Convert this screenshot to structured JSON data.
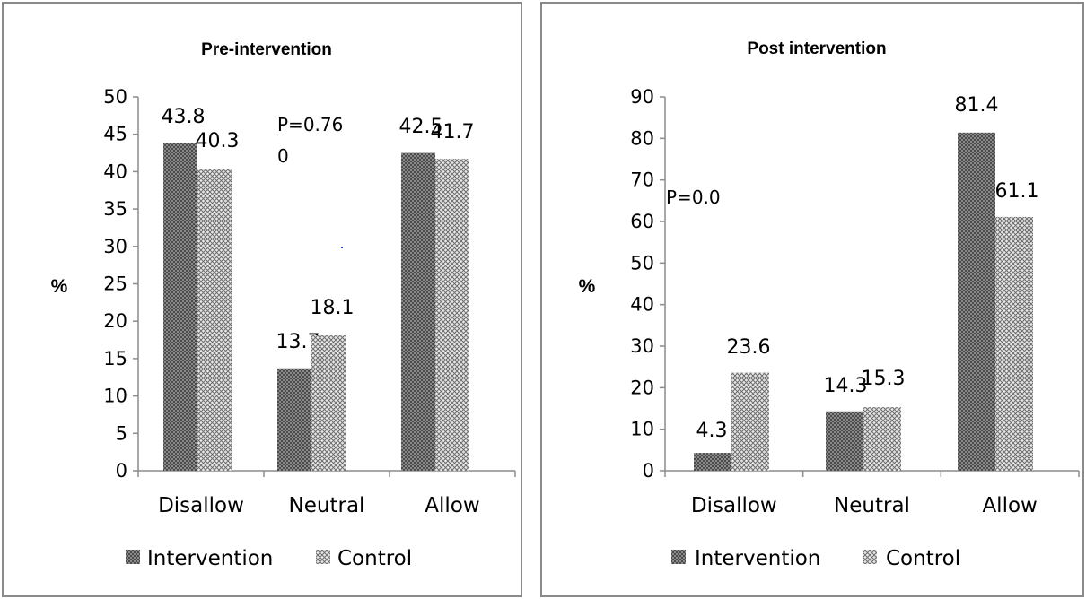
{
  "chart_data": [
    {
      "type": "bar",
      "title": "Pre-intervention",
      "ylabel": "%",
      "ylim": [
        0,
        50
      ],
      "yticks": [
        0,
        5,
        10,
        15,
        20,
        25,
        30,
        35,
        40,
        45,
        50
      ],
      "categories": [
        "Disallow",
        "Neutral",
        "Allow"
      ],
      "series": [
        {
          "name": "Intervention",
          "values": [
            43.8,
            13.7,
            42.5
          ],
          "labels": [
            "43.8",
            "13.7",
            "42.5"
          ],
          "pattern": "dark-cross"
        },
        {
          "name": "Control",
          "values": [
            40.3,
            18.1,
            41.7
          ],
          "labels": [
            "40.3",
            "18.1",
            "41.7"
          ],
          "pattern": "light-cross"
        }
      ],
      "annotation": [
        "P=0.76",
        "0"
      ],
      "legend_position": "bottom",
      "grid": false
    },
    {
      "type": "bar",
      "title": "Post intervention",
      "ylabel": "%",
      "ylim": [
        0,
        90
      ],
      "yticks": [
        0,
        10,
        20,
        30,
        40,
        50,
        60,
        70,
        80,
        90
      ],
      "categories": [
        "Disallow",
        "Neutral",
        "Allow"
      ],
      "series": [
        {
          "name": "Intervention",
          "values": [
            4.3,
            14.3,
            81.4
          ],
          "labels": [
            "4.3",
            "14.3",
            "81.4"
          ],
          "pattern": "dark-cross"
        },
        {
          "name": "Control",
          "values": [
            23.6,
            15.3,
            61.1
          ],
          "labels": [
            "23.6",
            "15.3",
            "61.1"
          ],
          "pattern": "light-cross"
        }
      ],
      "annotation": [
        "P=0.0"
      ],
      "legend_position": "bottom",
      "grid": false
    }
  ],
  "colors": {
    "intervention_fill": "#3a3a3a",
    "intervention_hatch": "#9a9a9a",
    "control_fill": "#e8e8e8",
    "control_hatch": "#6e6e6e",
    "axis": "#8c8c8c"
  }
}
